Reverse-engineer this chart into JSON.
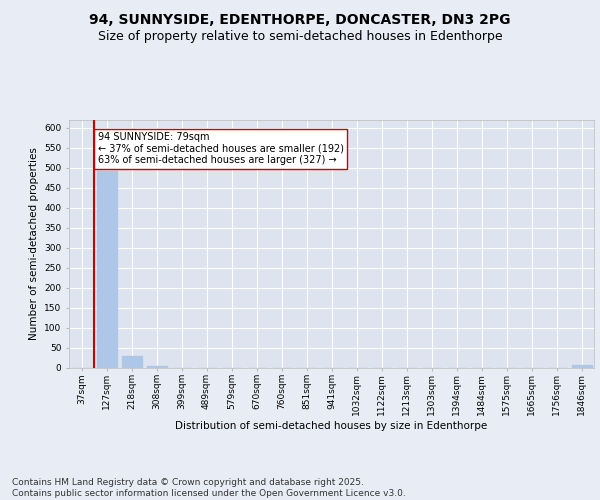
{
  "title1": "94, SUNNYSIDE, EDENTHORPE, DONCASTER, DN3 2PG",
  "title2": "Size of property relative to semi-detached houses in Edenthorpe",
  "xlabel": "Distribution of semi-detached houses by size in Edenthorpe",
  "ylabel": "Number of semi-detached properties",
  "categories": [
    "37sqm",
    "127sqm",
    "218sqm",
    "308sqm",
    "399sqm",
    "489sqm",
    "579sqm",
    "670sqm",
    "760sqm",
    "851sqm",
    "941sqm",
    "1032sqm",
    "1122sqm",
    "1213sqm",
    "1303sqm",
    "1394sqm",
    "1484sqm",
    "1575sqm",
    "1665sqm",
    "1756sqm",
    "1846sqm"
  ],
  "values": [
    0,
    493,
    28,
    5,
    0,
    0,
    0,
    0,
    0,
    0,
    0,
    0,
    0,
    0,
    0,
    0,
    0,
    0,
    0,
    0,
    7
  ],
  "bar_color": "#aec6e8",
  "marker_line_color": "#cc0000",
  "marker_index": 1,
  "annotation_title": "94 SUNNYSIDE: 79sqm",
  "annotation_line1": "← 37% of semi-detached houses are smaller (192)",
  "annotation_line2": "63% of semi-detached houses are larger (327) →",
  "ylim": [
    0,
    620
  ],
  "yticks": [
    0,
    50,
    100,
    150,
    200,
    250,
    300,
    350,
    400,
    450,
    500,
    550,
    600
  ],
  "footer": "Contains HM Land Registry data © Crown copyright and database right 2025.\nContains public sector information licensed under the Open Government Licence v3.0.",
  "bg_color": "#e8edf5",
  "plot_bg_color": "#dde4f0",
  "grid_color": "#ffffff",
  "title_fontsize": 10,
  "subtitle_fontsize": 9,
  "axis_label_fontsize": 7.5,
  "tick_fontsize": 6.5,
  "footer_fontsize": 6.5
}
